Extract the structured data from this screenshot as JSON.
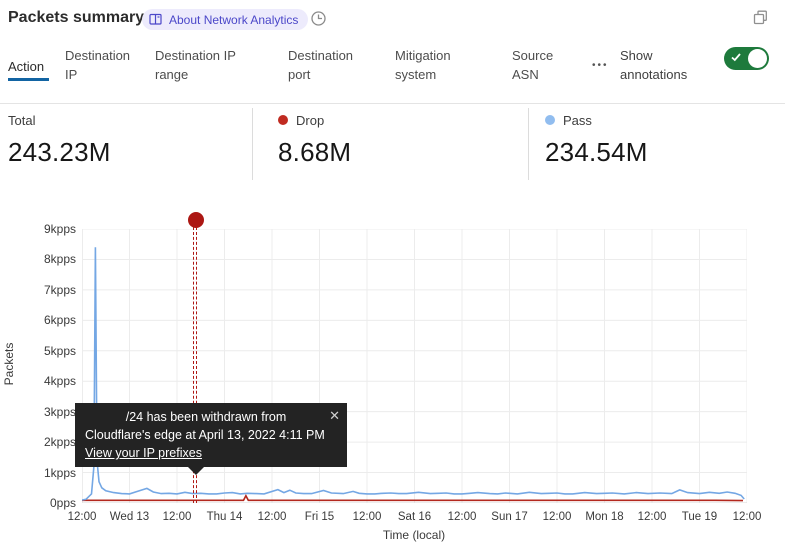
{
  "header": {
    "title": "Packets summary",
    "about_badge": "About Network Analytics",
    "icons": {
      "badge": "book-icon",
      "time": "clock-icon",
      "window": "popout-icon"
    }
  },
  "tabs": {
    "items": [
      {
        "label": "Action",
        "active": true
      },
      {
        "label": "Destination IP",
        "active": false
      },
      {
        "label": "Destination IP range",
        "active": false
      },
      {
        "label": "Destination port",
        "active": false
      },
      {
        "label": "Mitigation system",
        "active": false
      },
      {
        "label": "Source ASN",
        "active": false
      }
    ],
    "more_label": "•••",
    "annotations_label": "Show annotations",
    "annotations_enabled": true,
    "active_underline_color": "#1264a3"
  },
  "stats": {
    "items": [
      {
        "label": "Total",
        "value": "243.23M",
        "dot_color": null
      },
      {
        "label": "Drop",
        "value": "8.68M",
        "dot_color": "#c02b21"
      },
      {
        "label": "Pass",
        "value": "234.54M",
        "dot_color": "#91bdef"
      }
    ]
  },
  "tooltip": {
    "line1": "/24 has been withdrawn from",
    "line2": "Cloudflare's edge at April 13, 2022 4:11 PM",
    "link": "View your IP prefixes",
    "close": "✕"
  },
  "chart_data": {
    "type": "line",
    "xlabel": "Time (local)",
    "ylabel": "Packets",
    "x_unit": "hours since first tick (2022-04-12 12:00 local)",
    "x_range_hours": [
      0,
      168
    ],
    "ylim_kpps": [
      0,
      9
    ],
    "grid": true,
    "x_tick_labels": [
      "12:00",
      "Wed 13",
      "12:00",
      "Thu 14",
      "12:00",
      "Fri 15",
      "12:00",
      "Sat 16",
      "12:00",
      "Sun 17",
      "12:00",
      "Mon 18",
      "12:00",
      "Tue 19",
      "12:00"
    ],
    "y_tick_labels_top_to_bottom": [
      "9kpps",
      "8kpps",
      "7kpps",
      "6kpps",
      "5kpps",
      "4kpps",
      "3kpps",
      "2kpps",
      "1kpps",
      "0pps"
    ],
    "series": [
      {
        "name": "Drop",
        "color": "#b3281e",
        "points_h_kpps": [
          [
            0,
            0.09
          ],
          [
            20,
            0.09
          ],
          [
            40.8,
            0.09
          ],
          [
            41.4,
            0.24
          ],
          [
            42,
            0.09
          ],
          [
            60,
            0.09
          ],
          [
            80,
            0.09
          ],
          [
            100,
            0.09
          ],
          [
            120,
            0.09
          ],
          [
            140,
            0.09
          ],
          [
            160,
            0.09
          ],
          [
            167,
            0.08
          ]
        ]
      },
      {
        "name": "Pass",
        "color": "#74a7e4",
        "points_h_kpps": [
          [
            0,
            0.1
          ],
          [
            1,
            0.12
          ],
          [
            2.4,
            0.3
          ],
          [
            3.0,
            1.2
          ],
          [
            3.39,
            8.4
          ],
          [
            3.8,
            1.4
          ],
          [
            4.3,
            0.7
          ],
          [
            5,
            0.5
          ],
          [
            6,
            0.4
          ],
          [
            8,
            0.34
          ],
          [
            10,
            0.31
          ],
          [
            12,
            0.3
          ],
          [
            14,
            0.38
          ],
          [
            16.4,
            0.48
          ],
          [
            18,
            0.36
          ],
          [
            20,
            0.31
          ],
          [
            22,
            0.32
          ],
          [
            24,
            0.3
          ],
          [
            26,
            0.35
          ],
          [
            28,
            0.31
          ],
          [
            30,
            0.32
          ],
          [
            32,
            0.3
          ],
          [
            34,
            0.3
          ],
          [
            36,
            0.33
          ],
          [
            38,
            0.34
          ],
          [
            40,
            0.3
          ],
          [
            41.7,
            0.32
          ],
          [
            44,
            0.31
          ],
          [
            46,
            0.3
          ],
          [
            49.5,
            0.44
          ],
          [
            51,
            0.34
          ],
          [
            52.5,
            0.42
          ],
          [
            54,
            0.33
          ],
          [
            56,
            0.31
          ],
          [
            58,
            0.31
          ],
          [
            61,
            0.41
          ],
          [
            63,
            0.33
          ],
          [
            66,
            0.31
          ],
          [
            68.5,
            0.38
          ],
          [
            70,
            0.32
          ],
          [
            72,
            0.3
          ],
          [
            74,
            0.3
          ],
          [
            76,
            0.32
          ],
          [
            78,
            0.33
          ],
          [
            80,
            0.31
          ],
          [
            82,
            0.31
          ],
          [
            85,
            0.35
          ],
          [
            88,
            0.31
          ],
          [
            90,
            0.32
          ],
          [
            92,
            0.33
          ],
          [
            94,
            0.3
          ],
          [
            96,
            0.3
          ],
          [
            98,
            0.32
          ],
          [
            100,
            0.34
          ],
          [
            103,
            0.31
          ],
          [
            105,
            0.3
          ],
          [
            107,
            0.33
          ],
          [
            110,
            0.3
          ],
          [
            113,
            0.35
          ],
          [
            116,
            0.31
          ],
          [
            118,
            0.32
          ],
          [
            120,
            0.33
          ],
          [
            122,
            0.3
          ],
          [
            124,
            0.3
          ],
          [
            127,
            0.34
          ],
          [
            130,
            0.31
          ],
          [
            132,
            0.32
          ],
          [
            134,
            0.33
          ],
          [
            137,
            0.3
          ],
          [
            140,
            0.34
          ],
          [
            143,
            0.31
          ],
          [
            146,
            0.33
          ],
          [
            149,
            0.31
          ],
          [
            151,
            0.43
          ],
          [
            153,
            0.34
          ],
          [
            156,
            0.31
          ],
          [
            158.5,
            0.35
          ],
          [
            161,
            0.32
          ],
          [
            163,
            0.36
          ],
          [
            165,
            0.32
          ],
          [
            166.5,
            0.25
          ],
          [
            167.3,
            0.13
          ]
        ]
      }
    ],
    "annotation": {
      "x_hours": 28.8,
      "marker_color": "#ac1713",
      "line_style": "dashed-red-double"
    }
  }
}
